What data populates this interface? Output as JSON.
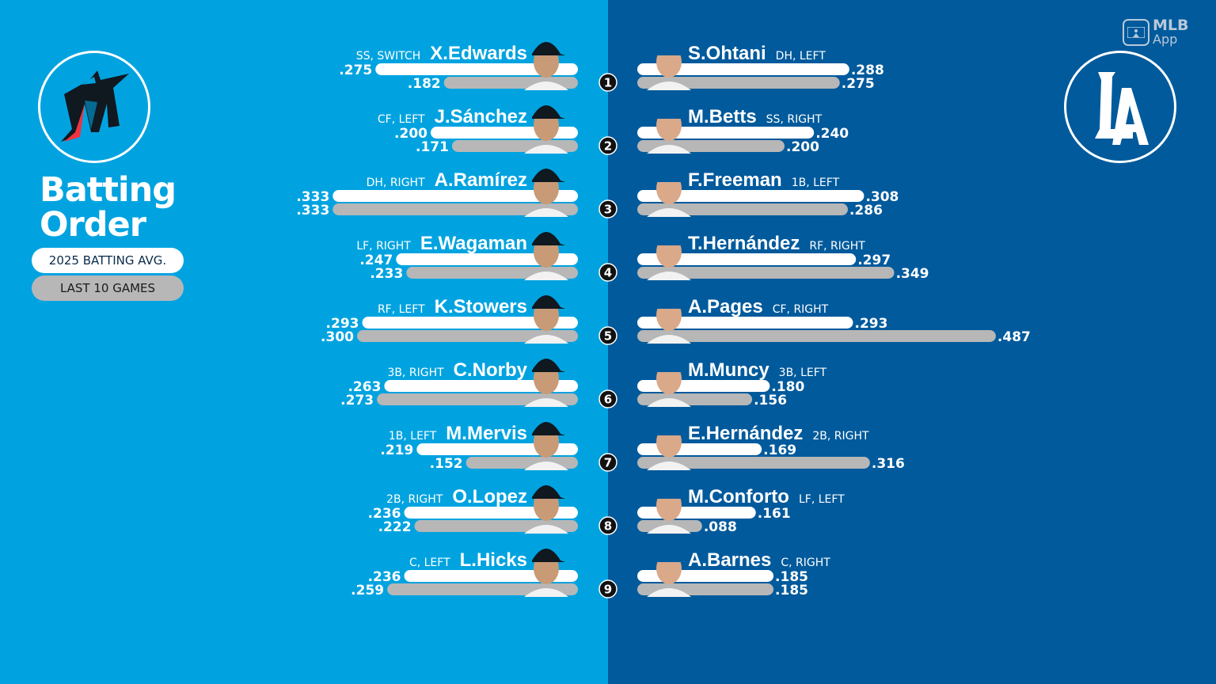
{
  "title_line1": "Batting",
  "title_line2": "Order",
  "legend": {
    "season_label": "2025 BATTING AVG.",
    "recent_label": "LAST 10 GAMES",
    "season_color": "#ffffff",
    "recent_color": "#b7b7b7"
  },
  "watermark": {
    "line1": "MLB",
    "line2": "App"
  },
  "colors": {
    "marlins_bg": "#00a3e0",
    "dodgers_bg": "#005a9c"
  },
  "teams": [
    {
      "name": "Marlins",
      "logo_icon": "marlins-logo-icon",
      "side": "left"
    },
    {
      "name": "Dodgers",
      "logo_icon": "dodgers-logo-icon",
      "side": "right"
    }
  ],
  "chart_data": {
    "type": "bar",
    "series": [
      {
        "name": "2025 BATTING AVG."
      },
      {
        "name": "LAST 10 GAMES"
      }
    ],
    "order": [
      "1",
      "2",
      "3",
      "4",
      "5",
      "6",
      "7",
      "8",
      "9"
    ],
    "marlins": [
      {
        "name": "X.Edwards",
        "pos": "SS, SWITCH",
        "season": ".275",
        "last10": ".182"
      },
      {
        "name": "J.Sánchez",
        "pos": "CF, LEFT",
        "season": ".200",
        "last10": ".171"
      },
      {
        "name": "A.Ramírez",
        "pos": "DH, RIGHT",
        "season": ".333",
        "last10": ".333"
      },
      {
        "name": "E.Wagaman",
        "pos": "LF, RIGHT",
        "season": ".247",
        "last10": ".233"
      },
      {
        "name": "K.Stowers",
        "pos": "RF, LEFT",
        "season": ".293",
        "last10": ".300"
      },
      {
        "name": "C.Norby",
        "pos": "3B, RIGHT",
        "season": ".263",
        "last10": ".273"
      },
      {
        "name": "M.Mervis",
        "pos": "1B, LEFT",
        "season": ".219",
        "last10": ".152"
      },
      {
        "name": "O.Lopez",
        "pos": "2B, RIGHT",
        "season": ".236",
        "last10": ".222"
      },
      {
        "name": "L.Hicks",
        "pos": "C, LEFT",
        "season": ".236",
        "last10": ".259"
      }
    ],
    "dodgers": [
      {
        "name": "S.Ohtani",
        "pos": "DH, LEFT",
        "season": ".288",
        "last10": ".275"
      },
      {
        "name": "M.Betts",
        "pos": "SS, RIGHT",
        "season": ".240",
        "last10": ".200"
      },
      {
        "name": "F.Freeman",
        "pos": "1B, LEFT",
        "season": ".308",
        "last10": ".286"
      },
      {
        "name": "T.Hernández",
        "pos": "RF, RIGHT",
        "season": ".297",
        "last10": ".349"
      },
      {
        "name": "A.Pages",
        "pos": "CF, RIGHT",
        "season": ".293",
        "last10": ".487"
      },
      {
        "name": "M.Muncy",
        "pos": "3B, LEFT",
        "season": ".180",
        "last10": ".156"
      },
      {
        "name": "E.Hernández",
        "pos": "2B, RIGHT",
        "season": ".169",
        "last10": ".316"
      },
      {
        "name": "M.Conforto",
        "pos": "LF, LEFT",
        "season": ".161",
        "last10": ".088"
      },
      {
        "name": "A.Barnes",
        "pos": "C, RIGHT",
        "season": ".185",
        "last10": ".185"
      }
    ]
  }
}
